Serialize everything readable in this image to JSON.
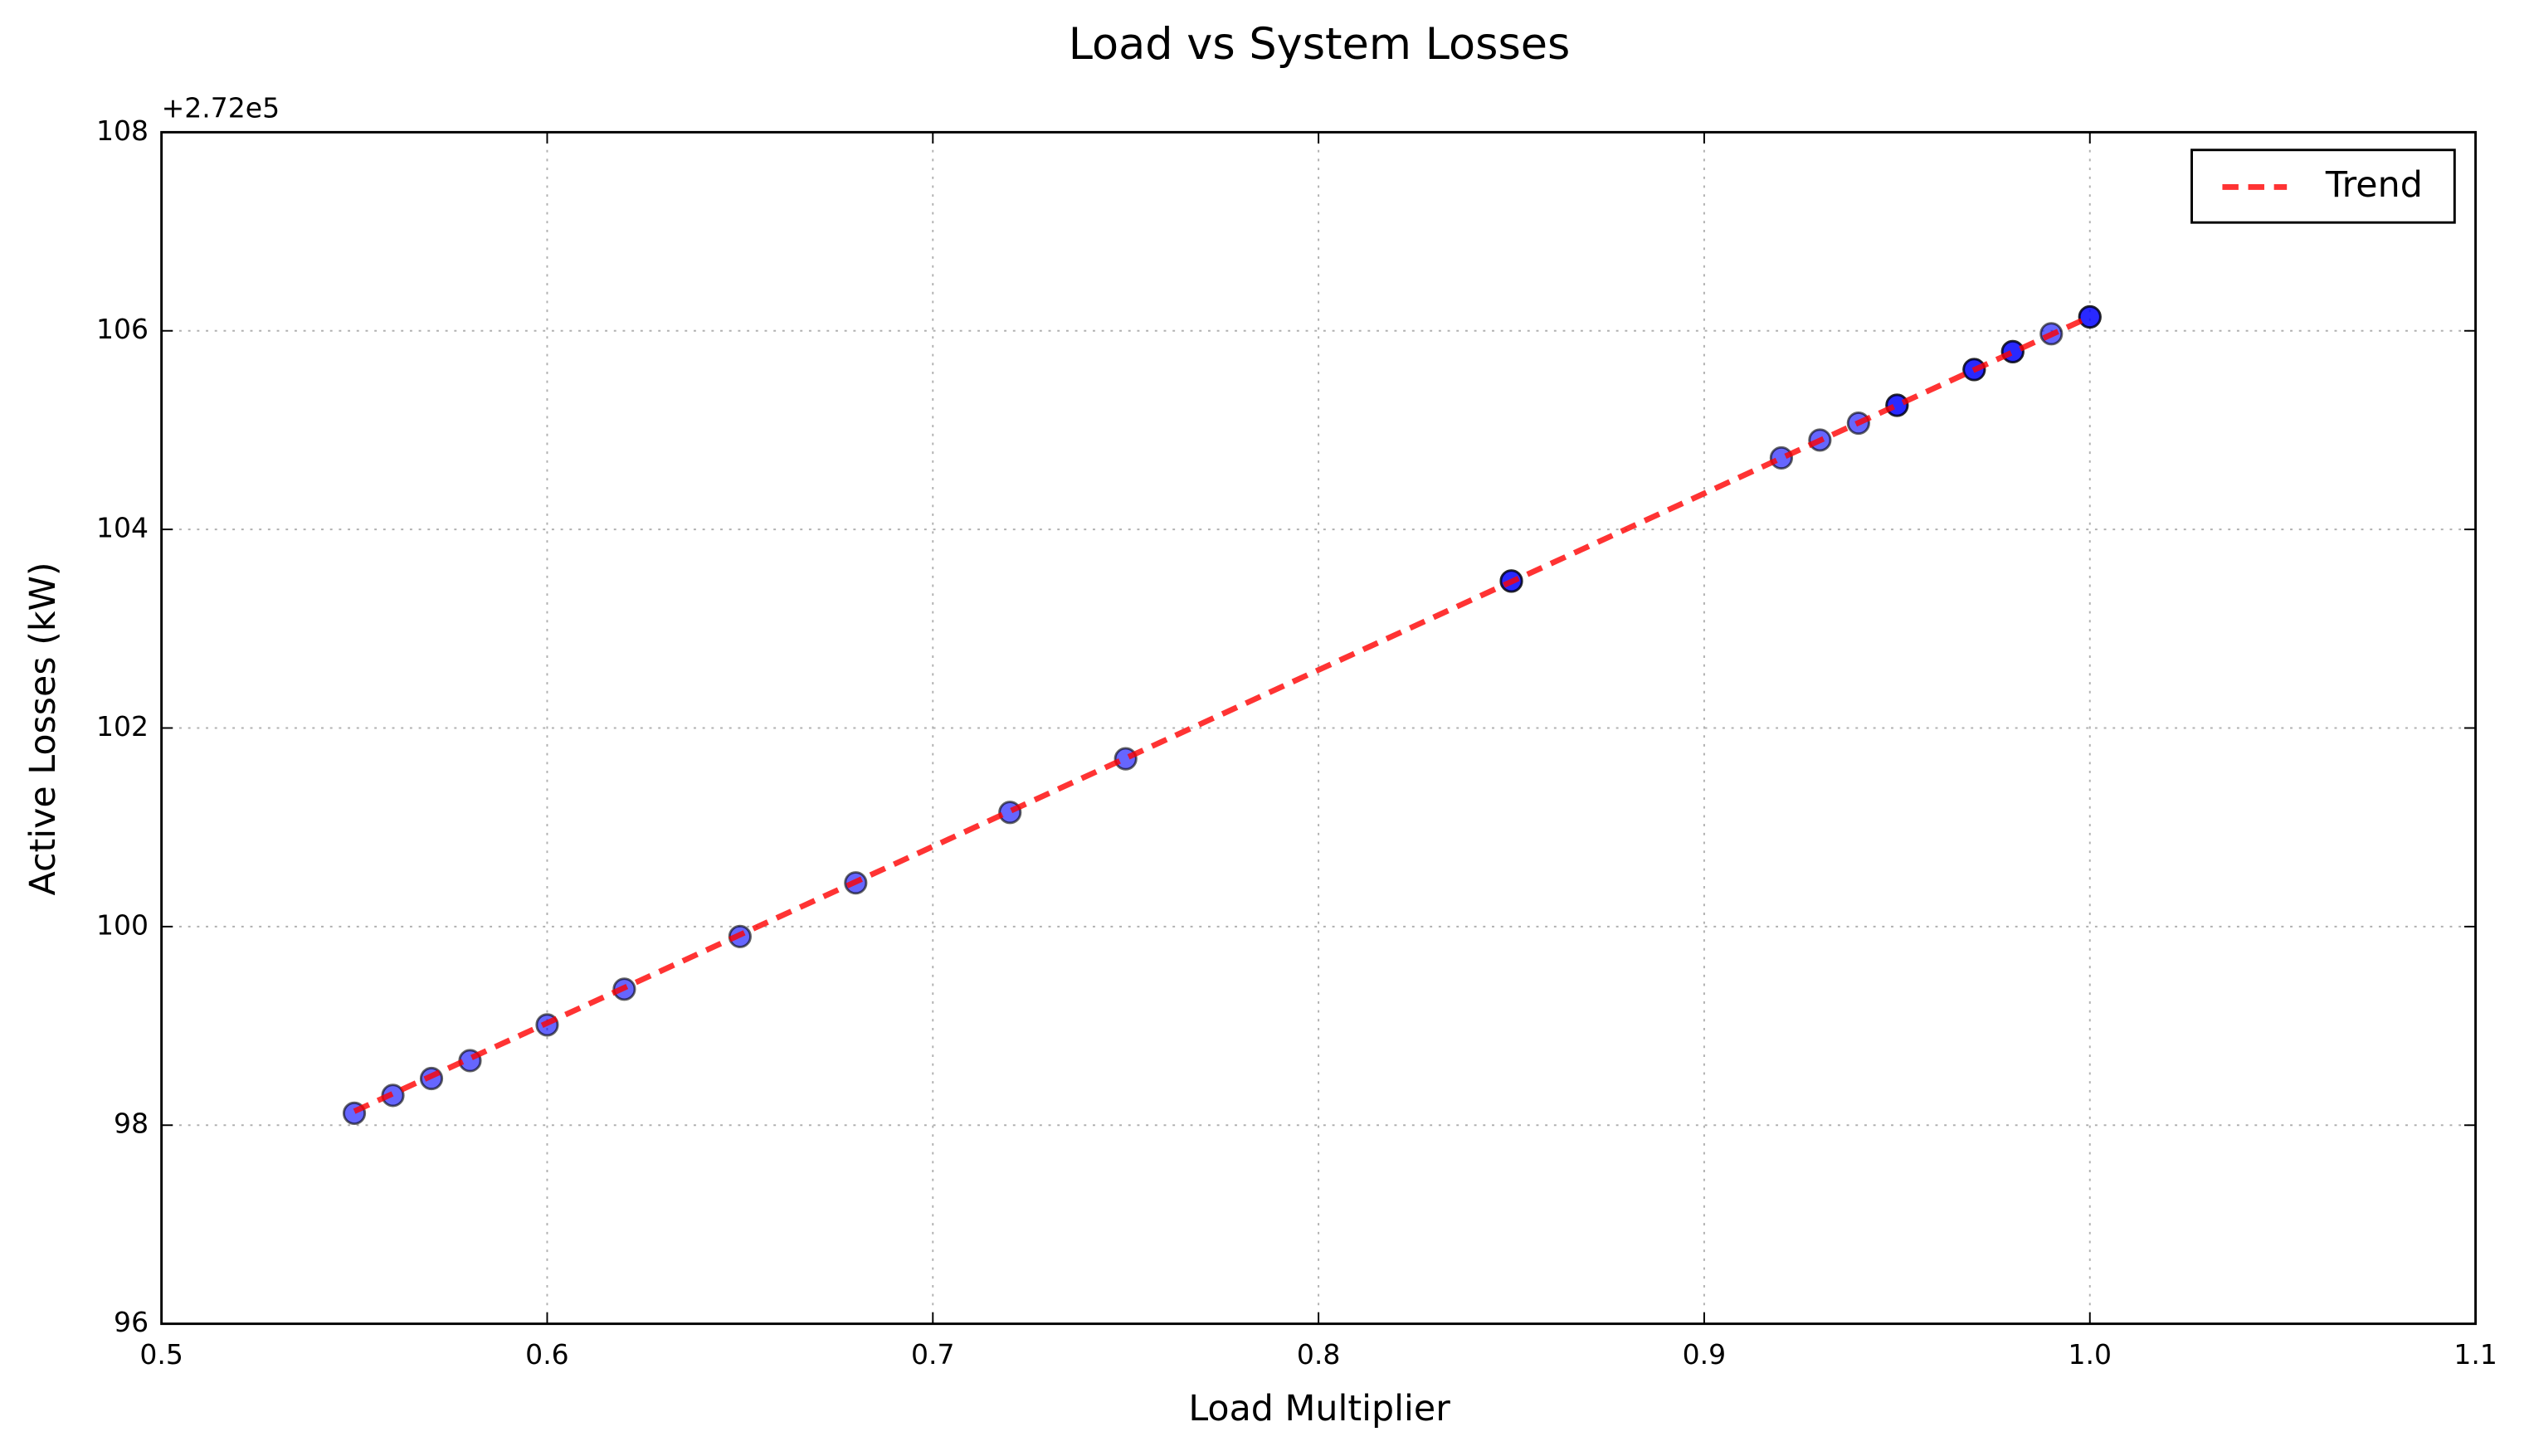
{
  "chart_data": {
    "type": "scatter",
    "title": "Load vs System Losses",
    "x_label": "Load Multiplier",
    "y_label": "Active Losses (kW)",
    "y_offset_text": "+2.72e5",
    "xlim": [
      0.5,
      1.1
    ],
    "xticks": [
      0.5,
      0.6,
      0.7,
      0.8,
      0.9,
      {
        "value": 1,
        "label": "1.0"
      },
      1.1
    ],
    "ylim": [
      96,
      108
    ],
    "yticks": [
      96,
      98,
      100,
      102,
      104,
      106,
      108
    ],
    "grid": true,
    "legend": "upper right",
    "series": [
      {
        "type": "scatter",
        "color": "#0000ff",
        "x": [
          0.55,
          0.56,
          0.57,
          0.58,
          0.6,
          0.62,
          0.65,
          0.68,
          0.72,
          0.75,
          0.85,
          0.85,
          0.92,
          0.93,
          0.94,
          0.95,
          0.95,
          0.97,
          0.97,
          0.98,
          0.98,
          0.99,
          1.0,
          1.0
        ],
        "values": [
          98.12,
          98.3,
          98.47,
          98.65,
          99.01,
          99.37,
          99.9,
          100.44,
          101.15,
          101.69,
          103.48,
          103.48,
          104.72,
          104.9,
          105.07,
          105.25,
          105.25,
          105.61,
          105.61,
          105.79,
          105.79,
          105.97,
          106.14,
          106.14
        ]
      },
      {
        "type": "line",
        "name": "Trend",
        "color": "#ff0000",
        "x": [
          0.55,
          1.0
        ],
        "values": [
          98.14,
          106.14
        ]
      }
    ]
  }
}
